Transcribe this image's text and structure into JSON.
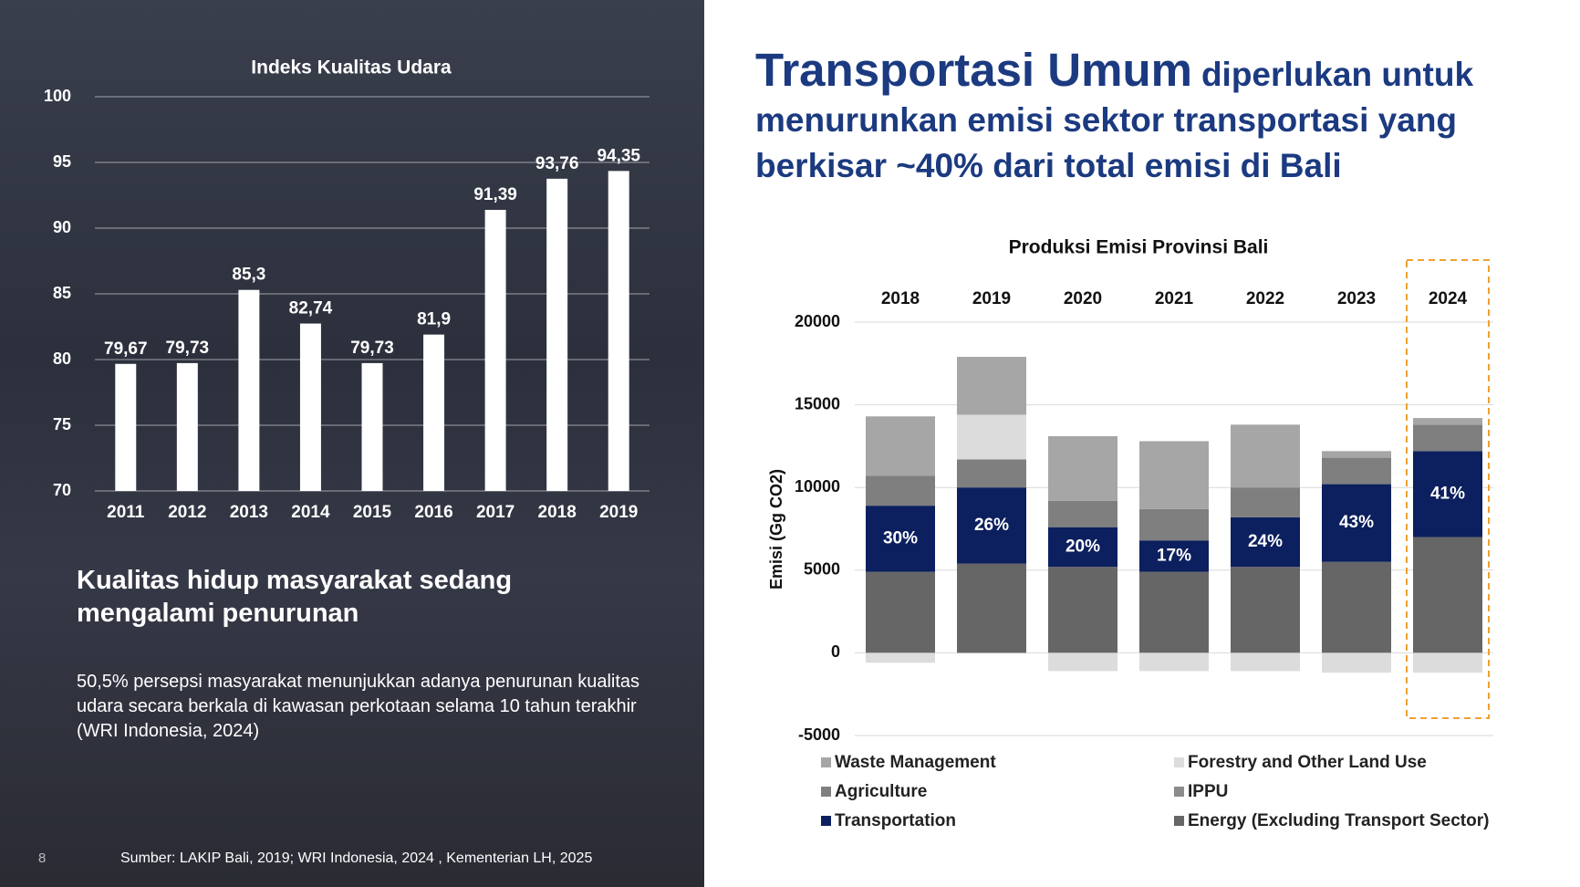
{
  "left_panel": {
    "heading": "Kualitas hidup masyarakat sedang mengalami penurunan",
    "body": "50,5% persepsi masyarakat menunjukkan adanya penurunan kualitas udara secara berkala di kawasan perkotaan selama 10 tahun terakhir (WRI Indonesia, 2024)",
    "source": "Sumber: LAKIP Bali, 2019; WRI Indonesia, 2024 , Kementerian LH, 2025",
    "page_number": "8"
  },
  "right_panel": {
    "headline_emphasis": "Transportasi Umum",
    "headline_rest": "diperlukan untuk menurunkan emisi sektor transportasi yang berkisar ~40% dari total emisi di Bali"
  },
  "chart_data": [
    {
      "type": "bar",
      "title": "Indeks Kualitas Udara",
      "categories": [
        "2011",
        "2012",
        "2013",
        "2014",
        "2015",
        "2016",
        "2017",
        "2018",
        "2019"
      ],
      "values": [
        79.67,
        79.73,
        85.3,
        82.74,
        79.73,
        81.9,
        91.39,
        93.76,
        94.35
      ],
      "value_labels": [
        "79,67",
        "79,73",
        "85,3",
        "82,74",
        "79,73",
        "81,9",
        "91,39",
        "93,76",
        "94,35"
      ],
      "color": "#ffffff",
      "ylim": [
        70,
        100
      ],
      "yticks": [
        70,
        75,
        80,
        85,
        90,
        95,
        100
      ],
      "grid": true
    },
    {
      "type": "stacked_bar",
      "title": "Produksi Emisi Provinsi Bali",
      "ylabel": "Emisi (Gg CO2)",
      "categories": [
        "2018",
        "2019",
        "2020",
        "2021",
        "2022",
        "2023",
        "2024"
      ],
      "series": [
        {
          "name": "Energy (Excluding Transport Sector)",
          "color": "#666666",
          "values": [
            4900,
            5400,
            5200,
            4900,
            5200,
            5500,
            7000
          ]
        },
        {
          "name": "Transportation",
          "color": "#0c1f5e",
          "values": [
            4000,
            4600,
            2400,
            1900,
            3000,
            4700,
            5200
          ],
          "share": [
            30,
            26,
            20,
            17,
            24,
            43,
            41
          ],
          "share_labels": [
            "30%",
            "26%",
            "20%",
            "17%",
            "24%",
            "43%",
            "41%"
          ]
        },
        {
          "name": "IPPU",
          "color": "#8c8c8c",
          "values": [
            0,
            0,
            0,
            0,
            0,
            0,
            0
          ]
        },
        {
          "name": "Agriculture",
          "color": "#7f7f7f",
          "values": [
            1800,
            1700,
            1600,
            1900,
            1800,
            1600,
            1600
          ]
        },
        {
          "name": "Forestry and Other Land Use",
          "color": "#dcdcdc",
          "values": [
            -600,
            2700,
            -1100,
            -1100,
            -1100,
            -1200,
            -1200
          ]
        },
        {
          "name": "Waste Management",
          "color": "#a6a6a6",
          "values": [
            3600,
            3500,
            3900,
            4100,
            3800,
            400,
            400
          ]
        }
      ],
      "ylim": [
        -5000,
        20000
      ],
      "yticks": [
        -5000,
        0,
        5000,
        10000,
        15000,
        20000
      ],
      "grid": true,
      "legend": "bottom"
    }
  ]
}
